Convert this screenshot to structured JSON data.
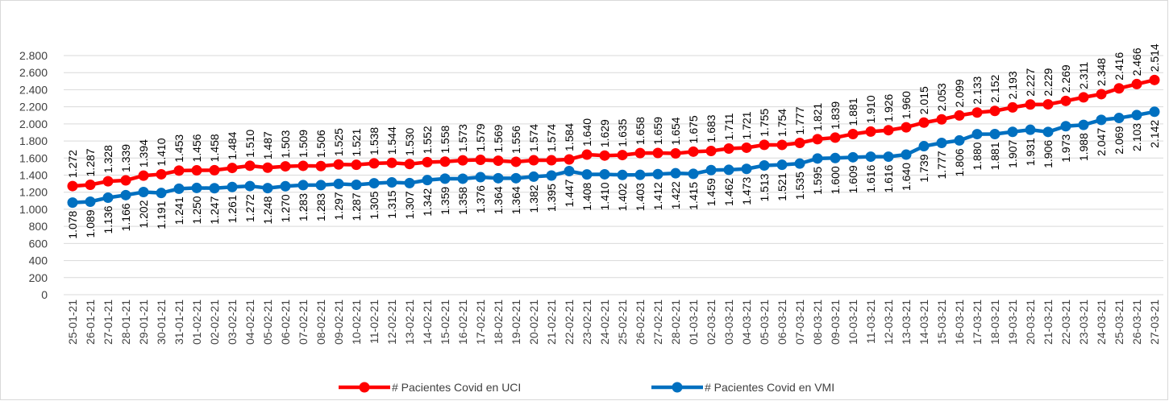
{
  "chart_data": {
    "type": "line",
    "categories": [
      "25-01-21",
      "26-01-21",
      "27-01-21",
      "28-01-21",
      "29-01-21",
      "30-01-21",
      "31-01-21",
      "01-02-21",
      "02-02-21",
      "03-02-21",
      "04-02-21",
      "05-02-21",
      "06-02-21",
      "07-02-21",
      "08-02-21",
      "09-02-21",
      "10-02-21",
      "11-02-21",
      "12-02-21",
      "13-02-21",
      "14-02-21",
      "15-02-21",
      "16-02-21",
      "17-02-21",
      "18-02-21",
      "19-02-21",
      "20-02-21",
      "21-02-21",
      "22-02-21",
      "23-02-21",
      "24-02-21",
      "25-02-21",
      "26-02-21",
      "27-02-21",
      "28-02-21",
      "01-03-21",
      "02-03-21",
      "03-03-21",
      "04-03-21",
      "05-03-21",
      "06-03-21",
      "07-03-21",
      "08-03-21",
      "09-03-21",
      "10-03-21",
      "11-03-21",
      "12-03-21",
      "13-03-21",
      "14-03-21",
      "15-03-21",
      "16-03-21",
      "17-03-21",
      "18-03-21",
      "19-03-21",
      "20-03-21",
      "21-03-21",
      "22-03-21",
      "23-03-21",
      "24-03-21",
      "25-03-21",
      "26-03-21",
      "27-03-21"
    ],
    "series": [
      {
        "name": "# Pacientes Covid en UCI",
        "color": "#ff0000",
        "values": [
          1272,
          1287,
          1328,
          1339,
          1394,
          1410,
          1453,
          1456,
          1458,
          1484,
          1510,
          1487,
          1503,
          1509,
          1506,
          1525,
          1521,
          1538,
          1544,
          1530,
          1552,
          1558,
          1573,
          1579,
          1569,
          1556,
          1574,
          1574,
          1584,
          1640,
          1629,
          1635,
          1658,
          1659,
          1654,
          1675,
          1683,
          1711,
          1721,
          1755,
          1754,
          1777,
          1821,
          1839,
          1881,
          1910,
          1926,
          1960,
          2015,
          2053,
          2099,
          2133,
          2152,
          2193,
          2227,
          2229,
          2269,
          2311,
          2348,
          2416,
          2466,
          2514
        ],
        "value_labels": [
          "1.272",
          "1.287",
          "1.328",
          "1.339",
          "1.394",
          "1.410",
          "1.453",
          "1.456",
          "1.458",
          "1.484",
          "1.510",
          "1.487",
          "1.503",
          "1.509",
          "1.506",
          "1.525",
          "1.521",
          "1.538",
          "1.544",
          "1.530",
          "1.552",
          "1.558",
          "1.573",
          "1.579",
          "1.569",
          "1.556",
          "1.574",
          "1.574",
          "1.584",
          "1.640",
          "1.629",
          "1.635",
          "1.658",
          "1.659",
          "1.654",
          "1.675",
          "1.683",
          "1.711",
          "1.721",
          "1.755",
          "1.754",
          "1.777",
          "1.821",
          "1.839",
          "1.881",
          "1.910",
          "1.926",
          "1.960",
          "2.015",
          "2.053",
          "2.099",
          "2.133",
          "2.152",
          "2.193",
          "2.227",
          "2.229",
          "2.269",
          "2.311",
          "2.348",
          "2.416",
          "2.466",
          "2.514"
        ]
      },
      {
        "name": "# Pacientes Covid en VMI",
        "color": "#0070c0",
        "values": [
          1078,
          1089,
          1136,
          1166,
          1202,
          1191,
          1241,
          1250,
          1247,
          1261,
          1272,
          1248,
          1270,
          1283,
          1283,
          1297,
          1287,
          1305,
          1315,
          1307,
          1342,
          1359,
          1358,
          1376,
          1364,
          1364,
          1382,
          1395,
          1447,
          1408,
          1410,
          1402,
          1403,
          1412,
          1422,
          1415,
          1459,
          1462,
          1473,
          1513,
          1521,
          1535,
          1595,
          1600,
          1609,
          1616,
          1616,
          1640,
          1739,
          1777,
          1806,
          1880,
          1881,
          1907,
          1931,
          1906,
          1973,
          1988,
          2047,
          2069,
          2103,
          2142
        ],
        "value_labels": [
          "1.078",
          "1.089",
          "1.136",
          "1.166",
          "1.202",
          "1.191",
          "1.241",
          "1.250",
          "1.247",
          "1.261",
          "1.272",
          "1.248",
          "1.270",
          "1.283",
          "1.283",
          "1.297",
          "1.287",
          "1.305",
          "1.315",
          "1.307",
          "1.342",
          "1.359",
          "1.358",
          "1.376",
          "1.364",
          "1.364",
          "1.382",
          "1.395",
          "1.447",
          "1.408",
          "1.410",
          "1.402",
          "1.403",
          "1.412",
          "1.422",
          "1.415",
          "1.459",
          "1.462",
          "1.473",
          "1.513",
          "1.521",
          "1.535",
          "1.595",
          "1.600",
          "1.609",
          "1.616",
          "1.616",
          "1.640",
          "1.739",
          "1.777",
          "1.806",
          "1.880",
          "1.881",
          "1.907",
          "1.931",
          "1.906",
          "1.973",
          "1.988",
          "2.047",
          "2.069",
          "2.103",
          "2.142"
        ]
      }
    ],
    "ylim": [
      0,
      2800
    ],
    "yticks": [
      0,
      200,
      400,
      600,
      800,
      {
        "value": 1000,
        "label": "1.000"
      },
      {
        "value": 1200,
        "label": "1.200"
      },
      {
        "value": 1400,
        "label": "1.400"
      },
      {
        "value": 1600,
        "label": "1.600"
      },
      {
        "value": 1800,
        "label": "1.800"
      },
      {
        "value": 2000,
        "label": "2.000"
      },
      {
        "value": 2200,
        "label": "2.200"
      },
      {
        "value": 2400,
        "label": "2.400"
      },
      {
        "value": 2600,
        "label": "2.600"
      },
      {
        "value": 2800,
        "label": "2.800"
      }
    ],
    "grid": true,
    "legend": "bottom"
  }
}
